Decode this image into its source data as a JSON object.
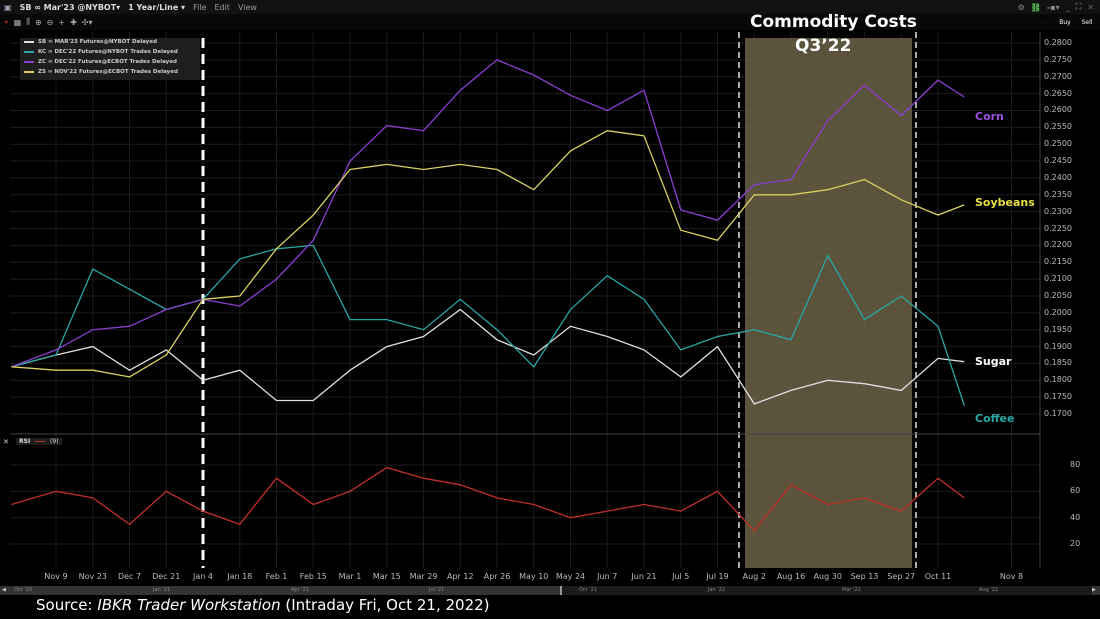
{
  "window": {
    "symbol_title": "SB ∞ Mar'23 @NYBOT▾",
    "interval": "1 Year/Line ▾",
    "menu": [
      "File",
      "Edit",
      "View"
    ],
    "toolbar_icons": [
      "table-icon",
      "chart-type-icon",
      "zoom-in-icon",
      "zoom-out-icon",
      "crosshair-icon",
      "move-icon",
      "more-icon"
    ],
    "window_icons": [
      "gear-icon",
      "link-icon",
      "layout-icon",
      "minimize-icon",
      "maximize-icon",
      "close-icon"
    ],
    "buttons": [
      {
        "label": "Alert",
        "color": "#e6e62a"
      },
      {
        "label": "Buy",
        "color": "#1f3fe0"
      },
      {
        "label": "Sell",
        "color": "#e01f1f"
      }
    ]
  },
  "legend": [
    {
      "text": "SB ∞ MAR'23 Futures@NYBOT Delayed",
      "color": "#e0e0e0"
    },
    {
      "text": "KC ∞ DEC'22 Futures@NYBOT Trades Delayed",
      "color": "#2aa6a6"
    },
    {
      "text": "ZC ∞ DEC'22 Futures@ECBOT Trades Delayed",
      "color": "#8a3fd0"
    },
    {
      "text": "ZS ∞ NOV'22 Futures@ECBOT Trades Delayed",
      "color": "#d8d060"
    }
  ],
  "annotation": {
    "title": "Commodity Costs",
    "subtitle": "Q3’22"
  },
  "rsi_label": {
    "name": "RSI",
    "param": "(9)"
  },
  "source": {
    "prefix": "Source: ",
    "italic": "IBKR Trader Workstation",
    "suffix": " (Intraday Fri, Oct 21, 2022)"
  },
  "navigator_labels": [
    "Oct '20",
    "Jan '21",
    "Apr '21",
    "Jul '21",
    "Oct '21",
    "Jan '22",
    "Mar '22",
    "Aug '22"
  ],
  "chart_data": [
    {
      "type": "line",
      "ylim": [
        0.165,
        0.2825
      ],
      "yticks": [
        "0.1700",
        "0.1750",
        "0.1800",
        "0.1850",
        "0.1900",
        "0.1950",
        "0.2000",
        "0.2050",
        "0.2100",
        "0.2150",
        "0.2200",
        "0.2250",
        "0.2300",
        "0.2350",
        "0.2400",
        "0.2450",
        "0.2500",
        "0.2550",
        "0.2600",
        "0.2650",
        "0.2700",
        "0.2750",
        "0.2800"
      ],
      "grid": true,
      "legend_position": "top-left",
      "x": [
        "2021-10-23",
        "2021-11-09",
        "2021-11-23",
        "2021-12-07",
        "2021-12-21",
        "2022-01-04",
        "2022-01-18",
        "2022-02-01",
        "2022-02-15",
        "2022-03-01",
        "2022-03-15",
        "2022-03-29",
        "2022-04-12",
        "2022-04-26",
        "2022-05-10",
        "2022-05-24",
        "2022-06-07",
        "2022-06-21",
        "2022-07-05",
        "2022-07-19",
        "2022-08-02",
        "2022-08-16",
        "2022-08-30",
        "2022-09-13",
        "2022-09-27",
        "2022-10-11",
        "2022-10-21"
      ],
      "series": [
        {
          "name": "Sugar",
          "color": "#e0e0e0",
          "values": [
            0.184,
            0.1875,
            0.19,
            0.183,
            0.189,
            0.18,
            0.183,
            0.174,
            0.174,
            0.183,
            0.19,
            0.193,
            0.201,
            0.192,
            0.1875,
            0.196,
            0.193,
            0.189,
            0.181,
            0.19,
            0.173,
            0.177,
            0.18,
            0.179,
            0.177,
            0.1865,
            0.1855
          ]
        },
        {
          "name": "Coffee",
          "color": "#2aa6a6",
          "values": [
            0.184,
            0.1875,
            0.213,
            0.207,
            0.201,
            0.204,
            0.216,
            0.219,
            0.22,
            0.198,
            0.198,
            0.195,
            0.204,
            0.195,
            0.184,
            0.201,
            0.211,
            0.204,
            0.189,
            0.193,
            0.195,
            0.192,
            0.217,
            0.198,
            0.205,
            0.196,
            0.1725
          ]
        },
        {
          "name": "Corn",
          "color": "#8a3fd0",
          "values": [
            0.184,
            0.189,
            0.195,
            0.196,
            0.201,
            0.204,
            0.202,
            0.21,
            0.2215,
            0.245,
            0.2555,
            0.254,
            0.266,
            0.275,
            0.2705,
            0.2645,
            0.26,
            0.266,
            0.2305,
            0.2275,
            0.238,
            0.2395,
            0.257,
            0.2675,
            0.2585,
            0.269,
            0.264
          ]
        },
        {
          "name": "Soybeans",
          "color": "#d8d060",
          "values": [
            0.184,
            0.183,
            0.183,
            0.181,
            0.1875,
            0.204,
            0.205,
            0.219,
            0.229,
            0.2425,
            0.244,
            0.2425,
            0.244,
            0.2425,
            0.2365,
            0.248,
            0.254,
            0.2525,
            0.2245,
            0.2215,
            0.235,
            0.235,
            0.2365,
            0.2395,
            0.2335,
            0.229,
            0.232
          ]
        }
      ],
      "xticks": [
        {
          "date": "2021-11-09",
          "label": "Nov 9"
        },
        {
          "date": "2021-11-23",
          "label": "Nov 23"
        },
        {
          "date": "2021-12-07",
          "label": "Dec 7"
        },
        {
          "date": "2021-12-21",
          "label": "Dec 21"
        },
        {
          "date": "2022-01-04",
          "label": "Jan 4"
        },
        {
          "date": "2022-01-18",
          "label": "Jan 18"
        },
        {
          "date": "2022-02-01",
          "label": "Feb 1"
        },
        {
          "date": "2022-02-15",
          "label": "Feb 15"
        },
        {
          "date": "2022-03-01",
          "label": "Mar 1"
        },
        {
          "date": "2022-03-15",
          "label": "Mar 15"
        },
        {
          "date": "2022-03-29",
          "label": "Mar 29"
        },
        {
          "date": "2022-04-12",
          "label": "Apr 12"
        },
        {
          "date": "2022-04-26",
          "label": "Apr 26"
        },
        {
          "date": "2022-05-10",
          "label": "May 10"
        },
        {
          "date": "2022-05-24",
          "label": "May 24"
        },
        {
          "date": "2022-06-07",
          "label": "Jun 7"
        },
        {
          "date": "2022-06-21",
          "label": "Jun 21"
        },
        {
          "date": "2022-07-05",
          "label": "Jul 5"
        },
        {
          "date": "2022-07-19",
          "label": "Jul 19"
        },
        {
          "date": "2022-08-02",
          "label": "Aug 2"
        },
        {
          "date": "2022-08-16",
          "label": "Aug 16"
        },
        {
          "date": "2022-08-30",
          "label": "Aug 30"
        },
        {
          "date": "2022-09-13",
          "label": "Sep 13"
        },
        {
          "date": "2022-09-27",
          "label": "Sep 27"
        },
        {
          "date": "2022-10-11",
          "label": "Oct 11"
        },
        {
          "date": "2022-11-08",
          "label": "Nov 8"
        }
      ]
    },
    {
      "type": "line",
      "title": "RSI (9)",
      "ylim": [
        10,
        90
      ],
      "yticks": [
        "80",
        "60",
        "40",
        "20"
      ],
      "x": [
        "2021-10-23",
        "2021-11-09",
        "2021-11-23",
        "2021-12-07",
        "2021-12-21",
        "2022-01-04",
        "2022-01-18",
        "2022-02-01",
        "2022-02-15",
        "2022-03-01",
        "2022-03-15",
        "2022-03-29",
        "2022-04-12",
        "2022-04-26",
        "2022-05-10",
        "2022-05-24",
        "2022-06-07",
        "2022-06-21",
        "2022-07-05",
        "2022-07-19",
        "2022-08-02",
        "2022-08-16",
        "2022-08-30",
        "2022-09-13",
        "2022-09-27",
        "2022-10-11",
        "2022-10-21"
      ],
      "series": [
        {
          "color": "#c0302a",
          "values": [
            50,
            60,
            55,
            35,
            60,
            45,
            35,
            70,
            50,
            60,
            78,
            70,
            65,
            55,
            50,
            40,
            45,
            50,
            45,
            60,
            30,
            65,
            50,
            55,
            45,
            70,
            55
          ]
        }
      ]
    }
  ]
}
